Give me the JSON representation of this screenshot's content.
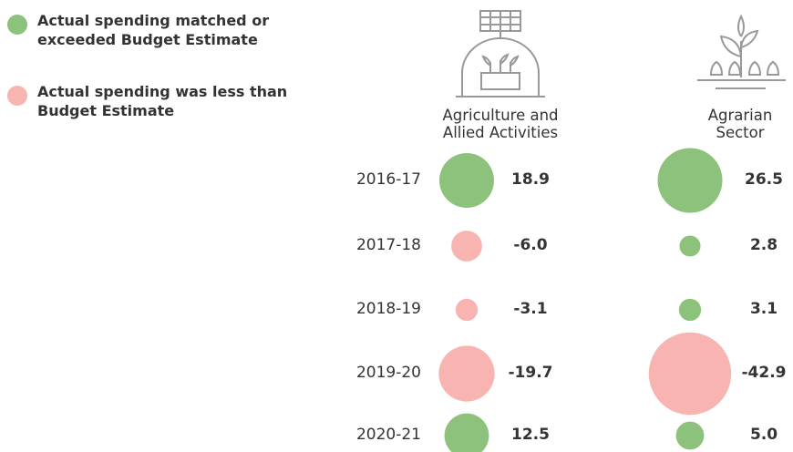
{
  "chart_data": {
    "type": "bubble",
    "legend": [
      {
        "name": "Actual spending matched or exceeded Budget Estimate",
        "color": "#8dc27c"
      },
      {
        "name": "Actual spending was less than Budget Estimate",
        "color": "#f8b4b1"
      }
    ],
    "categories": [
      "2016-17",
      "2017-18",
      "2018-19",
      "2019-20",
      "2020-21"
    ],
    "series": [
      {
        "name": "Agriculture and Allied Activities",
        "values": [
          18.9,
          -6.0,
          -3.1,
          -19.7,
          12.5
        ],
        "value_labels": [
          "18.9",
          "-6.0",
          "-3.1",
          "-19.7",
          "12.5"
        ]
      },
      {
        "name": "Agrarian Sector",
        "values": [
          26.5,
          2.8,
          3.1,
          -42.9,
          5.0
        ],
        "value_labels": [
          "26.5",
          "2.8",
          "3.1",
          "-42.9",
          "5.0"
        ]
      }
    ]
  }
}
